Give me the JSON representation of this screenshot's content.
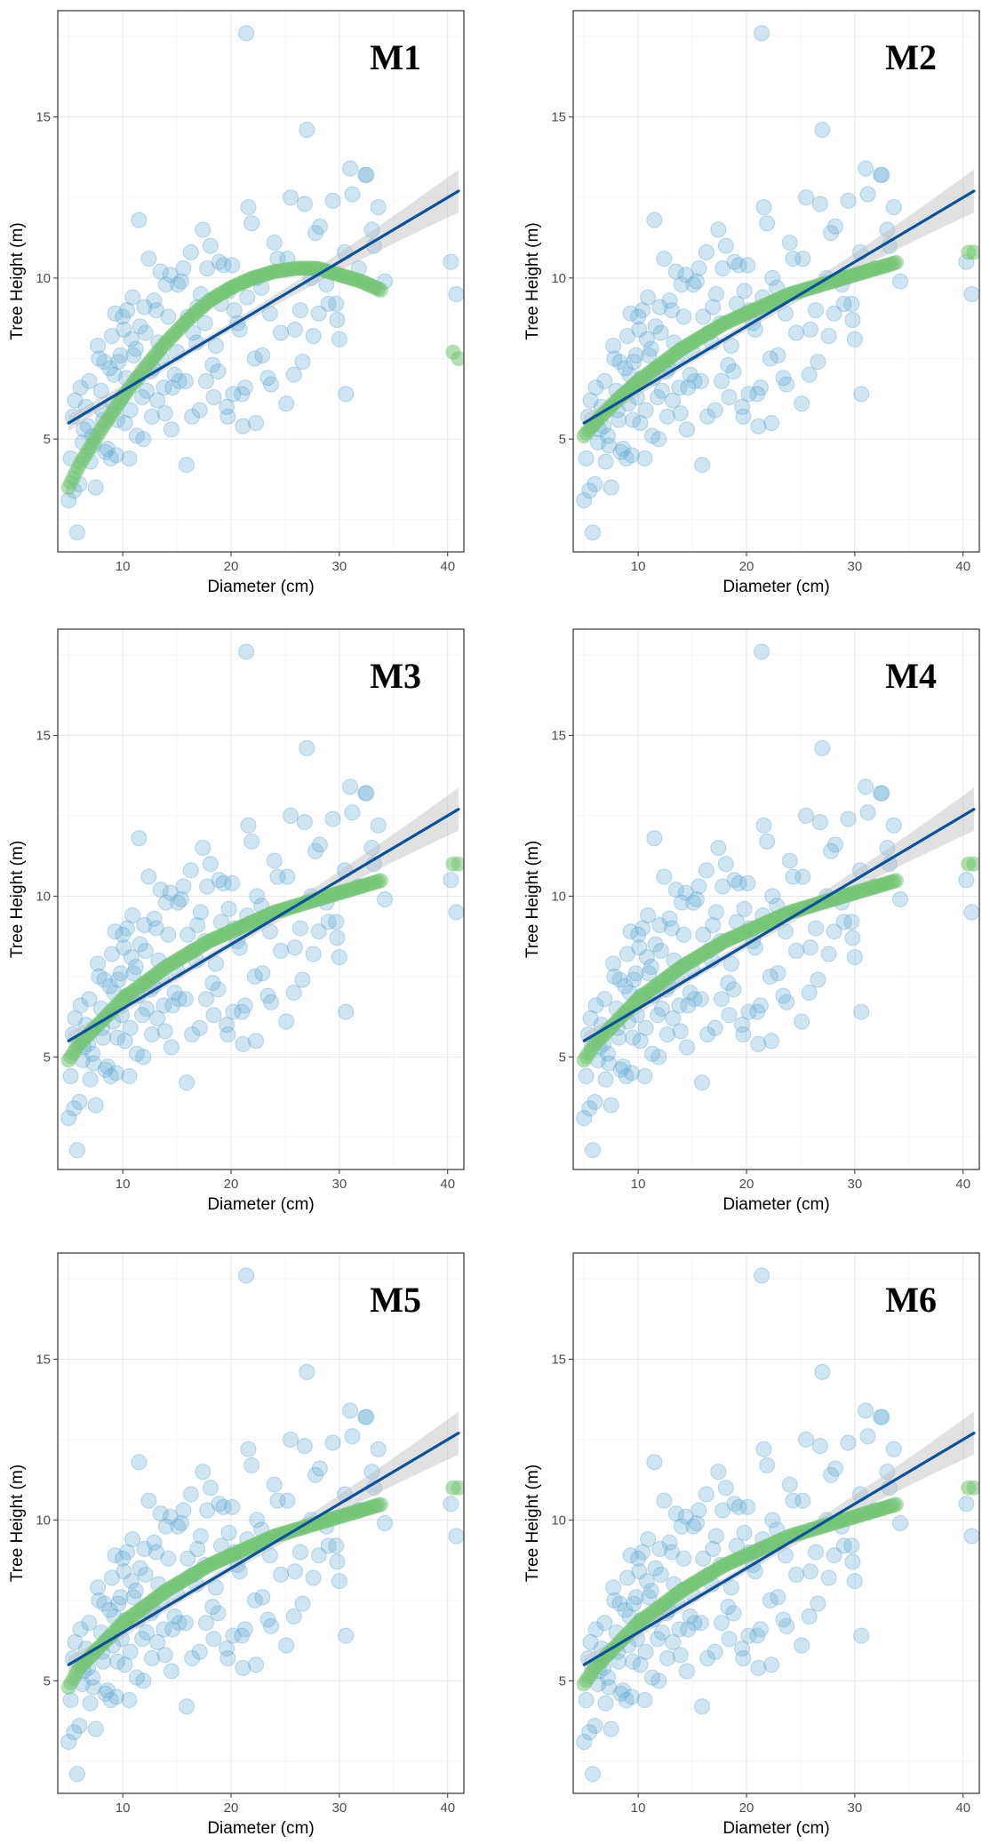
{
  "chart_data": [
    {
      "type": "scatter",
      "title": "M1",
      "xlabel": "Diameter (cm)",
      "ylabel": "Tree Height (m)",
      "xlim": [
        4,
        41.5
      ],
      "ylim": [
        1.5,
        18.3
      ],
      "xticks": [
        "10",
        "20",
        "30",
        "40"
      ],
      "yticks": [
        "5",
        "10",
        "15"
      ],
      "linear_fit": {
        "x": [
          5,
          41
        ],
        "y": [
          5.5,
          12.7
        ]
      },
      "model_curve": {
        "x": [
          5,
          6,
          8,
          10,
          12,
          14,
          16,
          18,
          20,
          22,
          24,
          26,
          28,
          30,
          32,
          34,
          40.5,
          41
        ],
        "y": [
          3.5,
          4.2,
          5.3,
          6.3,
          7.2,
          8.0,
          8.7,
          9.3,
          9.7,
          10.0,
          10.2,
          10.3,
          10.3,
          10.1,
          9.9,
          9.6,
          7.7,
          7.5
        ]
      },
      "series_colors": {
        "observed": "#6baed6",
        "model": "#74c476",
        "linear": "#08519c"
      }
    },
    {
      "type": "scatter",
      "title": "M2",
      "xlabel": "Diameter (cm)",
      "ylabel": "Tree Height (m)",
      "xlim": [
        4,
        41.5
      ],
      "ylim": [
        1.5,
        18.3
      ],
      "xticks": [
        "10",
        "20",
        "30",
        "40"
      ],
      "yticks": [
        "5",
        "10",
        "15"
      ],
      "linear_fit": {
        "x": [
          5,
          41
        ],
        "y": [
          5.5,
          12.7
        ]
      },
      "model_curve": {
        "x": [
          5,
          6,
          8,
          10,
          12,
          14,
          16,
          18,
          20,
          22,
          24,
          26,
          28,
          30,
          32,
          34,
          40.5,
          41
        ],
        "y": [
          5.1,
          5.5,
          6.2,
          6.8,
          7.3,
          7.8,
          8.2,
          8.6,
          8.9,
          9.2,
          9.5,
          9.7,
          9.9,
          10.1,
          10.3,
          10.5,
          10.8,
          10.8
        ]
      },
      "series_colors": {
        "observed": "#6baed6",
        "model": "#74c476",
        "linear": "#08519c"
      }
    },
    {
      "type": "scatter",
      "title": "M3",
      "xlabel": "Diameter (cm)",
      "ylabel": "Tree Height (m)",
      "xlim": [
        4,
        41.5
      ],
      "ylim": [
        1.5,
        18.3
      ],
      "xticks": [
        "10",
        "20",
        "30",
        "40"
      ],
      "yticks": [
        "5",
        "10",
        "15"
      ],
      "linear_fit": {
        "x": [
          5,
          41
        ],
        "y": [
          5.5,
          12.7
        ]
      },
      "model_curve": {
        "x": [
          5,
          6,
          8,
          10,
          12,
          14,
          16,
          18,
          20,
          22,
          24,
          26,
          28,
          30,
          32,
          34,
          40.5,
          41
        ],
        "y": [
          4.9,
          5.4,
          6.1,
          6.8,
          7.3,
          7.8,
          8.2,
          8.6,
          8.9,
          9.2,
          9.5,
          9.7,
          9.9,
          10.1,
          10.3,
          10.5,
          11.0,
          11.0
        ]
      },
      "series_colors": {
        "observed": "#6baed6",
        "model": "#74c476",
        "linear": "#08519c"
      }
    },
    {
      "type": "scatter",
      "title": "M4",
      "xlabel": "Diameter (cm)",
      "ylabel": "Tree Height (m)",
      "xlim": [
        4,
        41.5
      ],
      "ylim": [
        1.5,
        18.3
      ],
      "xticks": [
        "10",
        "20",
        "30",
        "40"
      ],
      "yticks": [
        "5",
        "10",
        "15"
      ],
      "linear_fit": {
        "x": [
          5,
          41
        ],
        "y": [
          5.5,
          12.7
        ]
      },
      "model_curve": {
        "x": [
          5,
          6,
          8,
          10,
          12,
          14,
          16,
          18,
          20,
          22,
          24,
          26,
          28,
          30,
          32,
          34,
          40.5,
          41
        ],
        "y": [
          4.9,
          5.4,
          6.1,
          6.8,
          7.3,
          7.8,
          8.2,
          8.6,
          8.9,
          9.2,
          9.5,
          9.7,
          9.9,
          10.1,
          10.3,
          10.5,
          11.0,
          11.0
        ]
      },
      "series_colors": {
        "observed": "#6baed6",
        "model": "#74c476",
        "linear": "#08519c"
      }
    },
    {
      "type": "scatter",
      "title": "M5",
      "xlabel": "Diameter (cm)",
      "ylabel": "Tree Height (m)",
      "xlim": [
        4,
        41.5
      ],
      "ylim": [
        1.5,
        18.3
      ],
      "xticks": [
        "10",
        "20",
        "30",
        "40"
      ],
      "yticks": [
        "5",
        "10",
        "15"
      ],
      "linear_fit": {
        "x": [
          5,
          41
        ],
        "y": [
          5.5,
          12.7
        ]
      },
      "model_curve": {
        "x": [
          5,
          6,
          8,
          10,
          12,
          14,
          16,
          18,
          20,
          22,
          24,
          26,
          28,
          30,
          32,
          34,
          40.5,
          41
        ],
        "y": [
          4.8,
          5.4,
          6.1,
          6.8,
          7.3,
          7.8,
          8.2,
          8.6,
          8.9,
          9.2,
          9.5,
          9.7,
          9.9,
          10.1,
          10.3,
          10.5,
          11.0,
          11.0
        ]
      },
      "series_colors": {
        "observed": "#6baed6",
        "model": "#74c476",
        "linear": "#08519c"
      }
    },
    {
      "type": "scatter",
      "title": "M6",
      "xlabel": "Diameter (cm)",
      "ylabel": "Tree Height (m)",
      "xlim": [
        4,
        41.5
      ],
      "ylim": [
        1.5,
        18.3
      ],
      "xticks": [
        "10",
        "20",
        "30",
        "40"
      ],
      "yticks": [
        "5",
        "10",
        "15"
      ],
      "linear_fit": {
        "x": [
          5,
          41
        ],
        "y": [
          5.5,
          12.7
        ]
      },
      "model_curve": {
        "x": [
          5,
          6,
          8,
          10,
          12,
          14,
          16,
          18,
          20,
          22,
          24,
          26,
          28,
          30,
          32,
          34,
          40.5,
          41
        ],
        "y": [
          4.9,
          5.4,
          6.1,
          6.8,
          7.3,
          7.8,
          8.2,
          8.6,
          8.9,
          9.2,
          9.5,
          9.7,
          9.9,
          10.1,
          10.3,
          10.5,
          11.0,
          11.0
        ]
      },
      "series_colors": {
        "observed": "#6baed6",
        "model": "#74c476",
        "linear": "#08519c"
      }
    }
  ],
  "observations": {
    "x": [
      5.2,
      5.5,
      6.0,
      5.0,
      5.8,
      6.3,
      6.8,
      7.0,
      7.5,
      5.4,
      6.1,
      6.6,
      7.2,
      8.0,
      8.3,
      8.6,
      9.0,
      9.2,
      9.5,
      9.8,
      10.1,
      10.3,
      10.6,
      10.9,
      11.2,
      11.5,
      11.8,
      12.1,
      12.4,
      12.8,
      13.1,
      13.5,
      13.9,
      14.2,
      14.6,
      15.0,
      15.4,
      15.9,
      16.3,
      16.8,
      17.2,
      17.7,
      18.1,
      18.6,
      19.1,
      19.6,
      20.1,
      20.6,
      21.1,
      21.6,
      22.2,
      22.8,
      23.4,
      24.0,
      24.6,
      25.2,
      25.8,
      26.4,
      27.0,
      27.6,
      28.2,
      28.8,
      29.4,
      30.0,
      30.6,
      31.2,
      31.8,
      32.4,
      33.0,
      33.6,
      34.2,
      40.3,
      40.8,
      21.4,
      26.8,
      31.0,
      32.5,
      25.5,
      27.8,
      29.8,
      7.7,
      8.1,
      8.8,
      9.3,
      9.9,
      10.4,
      11.0,
      11.6,
      12.2,
      12.9,
      13.6,
      14.4,
      15.2,
      16.0,
      16.9,
      17.8,
      18.8,
      19.8,
      20.8,
      21.9,
      8.4,
      9.1,
      9.6,
      10.2,
      10.8,
      11.4,
      12.0,
      12.7,
      13.3,
      14.0,
      14.8,
      15.6,
      16.5,
      17.4,
      18.3,
      19.3,
      20.3,
      21.3,
      22.4,
      23.6,
      5.6,
      6.4,
      7.3,
      8.2,
      9.4,
      10.7,
      11.9,
      13.2,
      14.5,
      15.8,
      17.1,
      18.4,
      19.7,
      21.0,
      22.3,
      23.7,
      25.1,
      26.6,
      28.1,
      29.7,
      6.9,
      7.8,
      8.9,
      10.0,
      11.3,
      12.6,
      13.8,
      15.1,
      16.4,
      17.6,
      18.9,
      20.2,
      21.5,
      22.9,
      24.3,
      25.9,
      27.4,
      29.0,
      30.5,
      33.2
    ],
    "y": [
      4.4,
      3.4,
      3.6,
      3.1,
      2.1,
      4.9,
      5.4,
      4.3,
      3.5,
      5.7,
      6.6,
      6.0,
      5.1,
      6.5,
      7.4,
      4.7,
      8.2,
      7.0,
      5.6,
      7.6,
      8.4,
      6.9,
      4.4,
      9.4,
      7.8,
      11.8,
      6.3,
      8.3,
      10.6,
      7.2,
      9.0,
      10.2,
      5.8,
      8.8,
      6.6,
      7.7,
      9.9,
      4.2,
      10.8,
      8.0,
      9.5,
      6.8,
      11.0,
      7.9,
      9.2,
      6.0,
      10.4,
      8.6,
      5.4,
      12.2,
      7.5,
      9.7,
      6.9,
      11.1,
      8.3,
      10.6,
      7.0,
      9.0,
      14.6,
      8.2,
      11.6,
      9.8,
      12.4,
      8.1,
      6.4,
      12.6,
      10.3,
      13.2,
      11.5,
      12.2,
      9.9,
      10.5,
      9.5,
      17.6,
      12.3,
      13.4,
      13.2,
      12.5,
      11.4,
      8.7,
      7.9,
      5.9,
      7.2,
      8.9,
      6.3,
      9.0,
      7.6,
      8.5,
      6.5,
      9.3,
      7.5,
      10.1,
      6.8,
      8.8,
      9.1,
      10.3,
      7.1,
      9.6,
      8.4,
      11.7,
      4.6,
      6.1,
      7.4,
      5.5,
      8.1,
      6.9,
      9.1,
      5.7,
      8.0,
      9.8,
      7.0,
      10.3,
      8.3,
      11.5,
      7.3,
      10.4,
      9.0,
      6.6,
      10.0,
      8.9,
      6.2,
      5.3,
      4.8,
      5.6,
      4.5,
      5.9,
      5.0,
      6.2,
      5.3,
      6.8,
      5.9,
      6.3,
      5.7,
      6.4,
      5.5,
      6.7,
      6.1,
      7.4,
      8.9,
      9.2,
      6.8,
      7.5,
      4.4,
      8.8,
      5.1,
      7.1,
      6.6,
      9.8,
      5.7,
      8.6,
      10.5,
      6.4,
      9.4,
      7.6,
      10.6,
      8.4,
      10.0,
      9.2,
      10.8,
      11.0
    ]
  },
  "colors": {
    "observed": "#6baed6",
    "model": "#74c476",
    "linear": "#08519c",
    "band": "#bdbdbd"
  }
}
